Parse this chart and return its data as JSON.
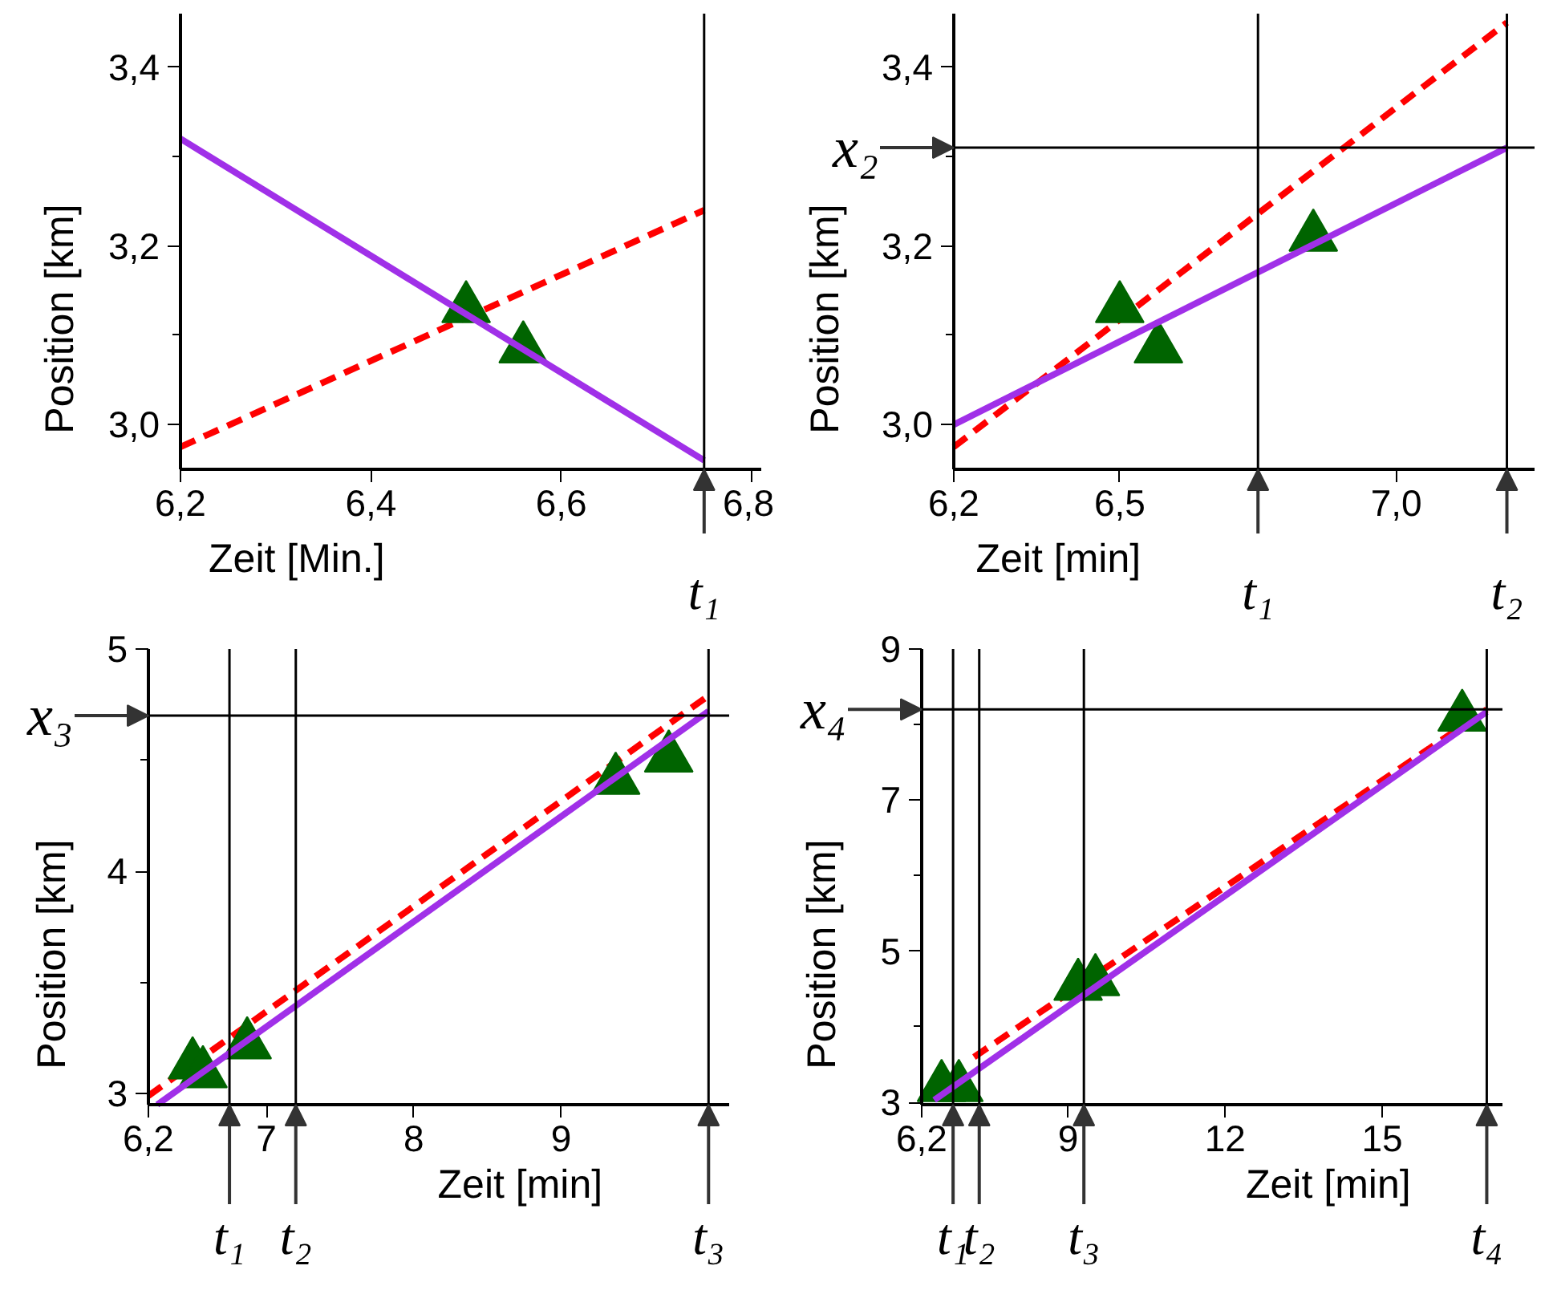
{
  "chart_data": [
    {
      "type": "line",
      "xlabel": "Zeit [Min.]",
      "ylabel": "Position [km]",
      "xlim": [
        6.2,
        6.81
      ],
      "ylim": [
        2.95,
        3.46
      ],
      "xticks": [
        {
          "value": 6.2,
          "label": "6,2"
        },
        {
          "value": 6.4,
          "label": "6,4"
        },
        {
          "value": 6.6,
          "label": "6,6"
        },
        {
          "value": 6.8,
          "label": "6,8"
        }
      ],
      "yticks": [
        {
          "value": 3.0,
          "label": "3,0"
        },
        {
          "value": 3.1,
          "label": null
        },
        {
          "value": 3.2,
          "label": "3,2"
        },
        {
          "value": 3.3,
          "label": null
        },
        {
          "value": 3.4,
          "label": "3,4"
        }
      ],
      "series": [
        {
          "color": "#ff0000",
          "line_style": "dashed",
          "x": [
            6.2,
            6.75
          ],
          "values": [
            2.975,
            3.24
          ]
        },
        {
          "type": "scatter",
          "color": "#006400",
          "marker": "triangle",
          "x": [
            6.5,
            6.56
          ],
          "values": [
            3.13,
            3.085
          ]
        },
        {
          "color": "#a030e8",
          "line_style": "solid",
          "x": [
            6.2,
            6.75
          ],
          "values": [
            3.32,
            2.96
          ]
        }
      ],
      "ref_lines": [
        {
          "axis": "x",
          "value": 6.75,
          "label": "t₁"
        }
      ]
    },
    {
      "type": "line",
      "xlabel": "Zeit [min]",
      "ylabel": "Position [km]",
      "xlim": [
        6.2,
        7.25
      ],
      "ylim": [
        2.95,
        3.46
      ],
      "xticks": [
        {
          "value": 6.2,
          "label": "6,2"
        },
        {
          "value": 6.5,
          "label": "6,5"
        },
        {
          "value": 7.0,
          "label": "7,0"
        }
      ],
      "yticks": [
        {
          "value": 3.0,
          "label": "3,0"
        },
        {
          "value": 3.1,
          "label": null
        },
        {
          "value": 3.2,
          "label": "3,2"
        },
        {
          "value": 3.3,
          "label": null
        },
        {
          "value": 3.4,
          "label": "3,4"
        }
      ],
      "series": [
        {
          "color": "#ff0000",
          "line_style": "dashed",
          "x": [
            6.2,
            7.2
          ],
          "values": [
            2.975,
            3.45
          ]
        },
        {
          "type": "scatter",
          "color": "#006400",
          "marker": "triangle",
          "x": [
            6.5,
            6.57,
            6.85
          ],
          "values": [
            3.13,
            3.085,
            3.21
          ]
        },
        {
          "color": "#a030e8",
          "line_style": "solid",
          "x": [
            6.2,
            7.2
          ],
          "values": [
            3.0,
            3.31
          ]
        }
      ],
      "ref_lines": [
        {
          "axis": "x",
          "value": 6.75,
          "label": "t₁"
        },
        {
          "axis": "x",
          "value": 7.2,
          "label": "t₂"
        },
        {
          "axis": "y",
          "value": 3.31,
          "label": "x₂"
        }
      ]
    },
    {
      "type": "line",
      "xlabel": "Zeit [min]",
      "ylabel": "Position [km]",
      "xlim": [
        6.2,
        10.14
      ],
      "ylim": [
        2.95,
        5
      ],
      "xticks": [
        {
          "value": 6.2,
          "label": "6,2"
        },
        7,
        8,
        9
      ],
      "yticks": [
        3,
        {
          "value": 3.5,
          "label": null
        },
        4,
        {
          "value": 4.5,
          "label": null
        },
        5
      ],
      "series": [
        {
          "color": "#ff0000",
          "line_style": "dashed",
          "x": [
            6.2,
            10
          ],
          "values": [
            2.99,
            4.79
          ]
        },
        {
          "type": "scatter",
          "color": "#006400",
          "marker": "triangle",
          "x": [
            6.5,
            6.57,
            6.87,
            9.37,
            9.73
          ],
          "values": [
            3.13,
            3.09,
            3.22,
            4.41,
            4.51
          ]
        },
        {
          "color": "#a030e8",
          "line_style": "solid",
          "x": [
            6.26,
            10
          ],
          "values": [
            2.95,
            4.72
          ]
        }
      ],
      "ref_lines": [
        {
          "axis": "x",
          "value": 6.75,
          "label": "t₁"
        },
        {
          "axis": "x",
          "value": 7.2,
          "label": "t₂"
        },
        {
          "axis": "x",
          "value": 10,
          "label": "t₃"
        },
        {
          "axis": "y",
          "value": 4.7,
          "label": "x₃"
        }
      ]
    },
    {
      "type": "line",
      "xlabel": "Zeit [min]",
      "ylabel": "Position [km]",
      "xlim": [
        6.2,
        17.3
      ],
      "ylim": [
        2.97,
        9
      ],
      "xticks": [
        {
          "value": 6.2,
          "label": "6,2"
        },
        9,
        12,
        15
      ],
      "yticks": [
        3,
        {
          "value": 4,
          "label": null
        },
        5,
        {
          "value": 6,
          "label": null
        },
        7,
        {
          "value": 8,
          "label": null
        },
        9
      ],
      "series": [
        {
          "color": "#ff0000",
          "line_style": "dashed",
          "x": [
            7.2,
            17
          ],
          "values": [
            3.6,
            8.2
          ]
        },
        {
          "type": "scatter",
          "color": "#006400",
          "marker": "triangle",
          "x": [
            6.58,
            6.91,
            9.19,
            9.52,
            16.53
          ],
          "values": [
            3.2,
            3.2,
            4.54,
            4.6,
            8.1
          ]
        },
        {
          "color": "#a030e8",
          "line_style": "solid",
          "x": [
            6.44,
            17
          ],
          "values": [
            3.03,
            8.17
          ]
        }
      ],
      "ref_lines": [
        {
          "axis": "x",
          "value": 6.8,
          "label": "t₁"
        },
        {
          "axis": "x",
          "value": 7.3,
          "label": "t₂"
        },
        {
          "axis": "x",
          "value": 9.3,
          "label": "t₃"
        },
        {
          "axis": "x",
          "value": 17,
          "label": "t₄"
        },
        {
          "axis": "y",
          "value": 8.2,
          "label": "x₄"
        }
      ]
    }
  ]
}
